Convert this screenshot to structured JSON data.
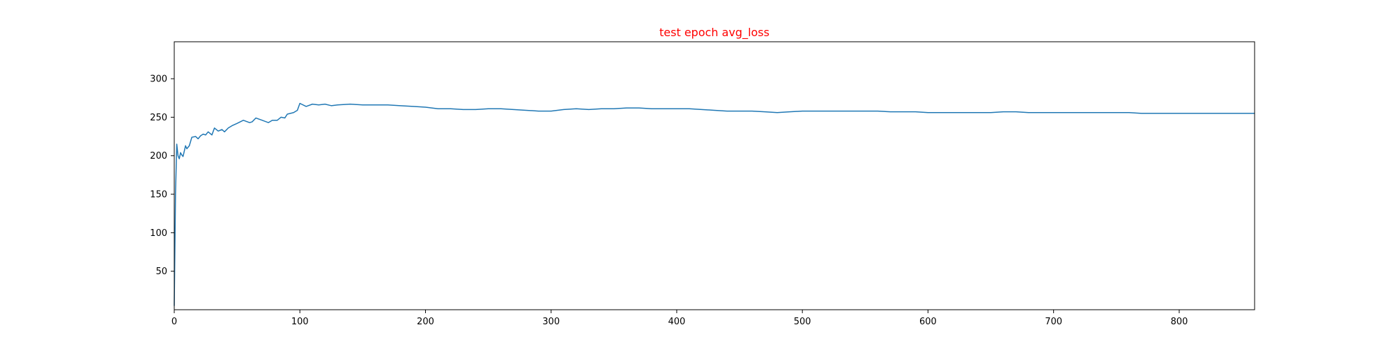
{
  "chart_data": {
    "type": "line",
    "title": "test epoch avg_loss",
    "title_color": "#ff0000",
    "xlabel": "",
    "ylabel": "",
    "xlim": [
      0,
      860
    ],
    "ylim": [
      0,
      348
    ],
    "grid": false,
    "legend": "none",
    "x_ticks": [
      0,
      100,
      200,
      300,
      400,
      500,
      600,
      700,
      800
    ],
    "y_ticks": [
      50,
      100,
      150,
      200,
      250,
      300
    ],
    "series": [
      {
        "color": "#1f77b4",
        "points": [
          [
            0,
            5
          ],
          [
            1,
            150
          ],
          [
            2,
            215
          ],
          [
            3,
            200
          ],
          [
            4,
            196
          ],
          [
            5,
            204
          ],
          [
            6,
            201
          ],
          [
            7,
            199
          ],
          [
            8,
            206
          ],
          [
            9,
            213
          ],
          [
            10,
            209
          ],
          [
            12,
            213
          ],
          [
            14,
            224
          ],
          [
            17,
            225
          ],
          [
            19,
            222
          ],
          [
            21,
            226
          ],
          [
            23,
            228
          ],
          [
            25,
            227
          ],
          [
            27,
            231
          ],
          [
            30,
            227
          ],
          [
            32,
            236
          ],
          [
            35,
            232
          ],
          [
            38,
            234
          ],
          [
            40,
            231
          ],
          [
            43,
            236
          ],
          [
            46,
            239
          ],
          [
            50,
            242
          ],
          [
            55,
            246
          ],
          [
            60,
            243
          ],
          [
            62,
            244
          ],
          [
            65,
            249
          ],
          [
            70,
            246
          ],
          [
            75,
            243
          ],
          [
            78,
            246
          ],
          [
            82,
            246
          ],
          [
            85,
            250
          ],
          [
            88,
            249
          ],
          [
            90,
            254
          ],
          [
            95,
            256
          ],
          [
            98,
            259
          ],
          [
            100,
            268
          ],
          [
            105,
            264
          ],
          [
            110,
            267
          ],
          [
            115,
            266
          ],
          [
            120,
            267
          ],
          [
            125,
            265
          ],
          [
            130,
            266
          ],
          [
            140,
            267
          ],
          [
            150,
            266
          ],
          [
            160,
            266
          ],
          [
            170,
            266
          ],
          [
            180,
            265
          ],
          [
            190,
            264
          ],
          [
            200,
            263
          ],
          [
            210,
            261
          ],
          [
            220,
            261
          ],
          [
            230,
            260
          ],
          [
            240,
            260
          ],
          [
            250,
            261
          ],
          [
            260,
            261
          ],
          [
            270,
            260
          ],
          [
            280,
            259
          ],
          [
            290,
            258
          ],
          [
            300,
            258
          ],
          [
            310,
            260
          ],
          [
            320,
            261
          ],
          [
            330,
            260
          ],
          [
            340,
            261
          ],
          [
            350,
            261
          ],
          [
            360,
            262
          ],
          [
            370,
            262
          ],
          [
            380,
            261
          ],
          [
            390,
            261
          ],
          [
            400,
            261
          ],
          [
            410,
            261
          ],
          [
            420,
            260
          ],
          [
            430,
            259
          ],
          [
            440,
            258
          ],
          [
            450,
            258
          ],
          [
            460,
            258
          ],
          [
            470,
            257
          ],
          [
            480,
            256
          ],
          [
            490,
            257
          ],
          [
            500,
            258
          ],
          [
            510,
            258
          ],
          [
            520,
            258
          ],
          [
            530,
            258
          ],
          [
            540,
            258
          ],
          [
            550,
            258
          ],
          [
            560,
            258
          ],
          [
            570,
            257
          ],
          [
            580,
            257
          ],
          [
            590,
            257
          ],
          [
            600,
            256
          ],
          [
            610,
            256
          ],
          [
            620,
            256
          ],
          [
            630,
            256
          ],
          [
            640,
            256
          ],
          [
            650,
            256
          ],
          [
            660,
            257
          ],
          [
            670,
            257
          ],
          [
            680,
            256
          ],
          [
            690,
            256
          ],
          [
            700,
            256
          ],
          [
            710,
            256
          ],
          [
            720,
            256
          ],
          [
            730,
            256
          ],
          [
            740,
            256
          ],
          [
            750,
            256
          ],
          [
            760,
            256
          ],
          [
            770,
            255
          ],
          [
            780,
            255
          ],
          [
            790,
            255
          ],
          [
            800,
            255
          ],
          [
            810,
            255
          ],
          [
            820,
            255
          ],
          [
            830,
            255
          ],
          [
            840,
            255
          ],
          [
            850,
            255
          ],
          [
            860,
            255
          ]
        ]
      }
    ]
  }
}
